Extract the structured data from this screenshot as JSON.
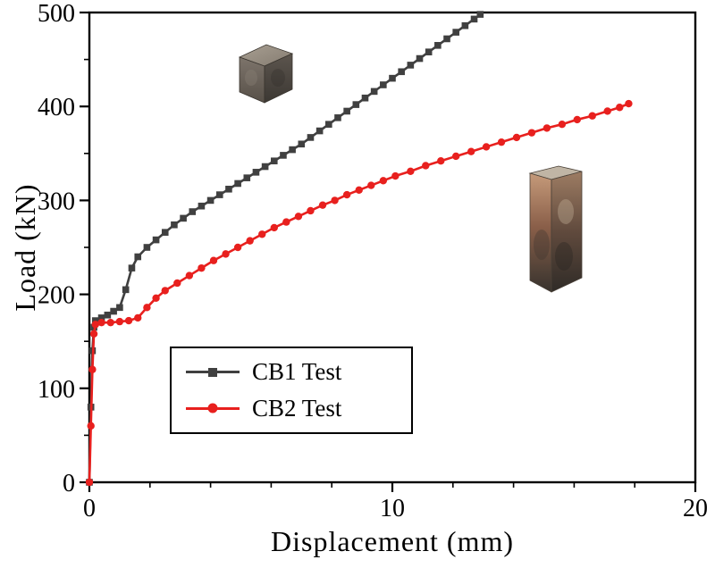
{
  "chart_data": {
    "type": "line",
    "title": "",
    "xlabel": "Displacement  (mm)",
    "ylabel": "Load (kN)",
    "xlim": [
      0,
      20
    ],
    "ylim": [
      0,
      500
    ],
    "x_major_ticks": [
      0,
      10,
      20
    ],
    "x_minor_step": 2,
    "y_major_ticks": [
      0,
      100,
      200,
      300,
      400,
      500
    ],
    "y_minor_step": 50,
    "grid": false,
    "legend_position": "inside lower-left",
    "series": [
      {
        "name": "CB1 Test",
        "color": "#404040",
        "marker": "square",
        "x": [
          0,
          0.05,
          0.1,
          0.15,
          0.2,
          0.4,
          0.6,
          0.8,
          1.0,
          1.2,
          1.4,
          1.6,
          1.9,
          2.2,
          2.5,
          2.8,
          3.1,
          3.4,
          3.7,
          4.0,
          4.3,
          4.6,
          4.9,
          5.2,
          5.5,
          5.8,
          6.1,
          6.4,
          6.7,
          7.0,
          7.3,
          7.6,
          7.9,
          8.2,
          8.5,
          8.8,
          9.1,
          9.4,
          9.7,
          10.0,
          10.3,
          10.6,
          10.9,
          11.2,
          11.5,
          11.8,
          12.1,
          12.4,
          12.7,
          12.9
        ],
        "y": [
          0,
          80,
          140,
          165,
          172,
          175,
          178,
          182,
          186,
          205,
          228,
          240,
          250,
          258,
          266,
          274,
          281,
          288,
          294,
          300,
          306,
          312,
          318,
          324,
          330,
          336,
          342,
          348,
          354,
          360,
          367,
          374,
          381,
          388,
          395,
          402,
          409,
          416,
          423,
          430,
          437,
          444,
          451,
          458,
          465,
          472,
          479,
          486,
          493,
          498
        ]
      },
      {
        "name": "CB2 Test",
        "color": "#e8201e",
        "marker": "circle",
        "x": [
          0,
          0.05,
          0.1,
          0.15,
          0.2,
          0.4,
          0.7,
          1.0,
          1.3,
          1.6,
          1.9,
          2.2,
          2.5,
          2.9,
          3.3,
          3.7,
          4.1,
          4.5,
          4.9,
          5.3,
          5.7,
          6.1,
          6.5,
          6.9,
          7.3,
          7.7,
          8.1,
          8.5,
          8.9,
          9.3,
          9.7,
          10.1,
          10.6,
          11.1,
          11.6,
          12.1,
          12.6,
          13.1,
          13.6,
          14.1,
          14.6,
          15.1,
          15.6,
          16.1,
          16.6,
          17.1,
          17.5,
          17.8
        ],
        "y": [
          0,
          60,
          120,
          158,
          168,
          170,
          170,
          171,
          172,
          175,
          186,
          196,
          204,
          212,
          220,
          228,
          236,
          243,
          250,
          257,
          264,
          271,
          277,
          283,
          289,
          295,
          300,
          306,
          311,
          316,
          321,
          326,
          331,
          337,
          342,
          347,
          352,
          357,
          362,
          367,
          372,
          377,
          381,
          386,
          390,
          395,
          399,
          403
        ]
      }
    ]
  },
  "specimen_photos": {
    "cb1": "gray-steel-cube-specimen-photo",
    "cb2": "rust-stained-rectangular-prism-specimen-photo"
  }
}
